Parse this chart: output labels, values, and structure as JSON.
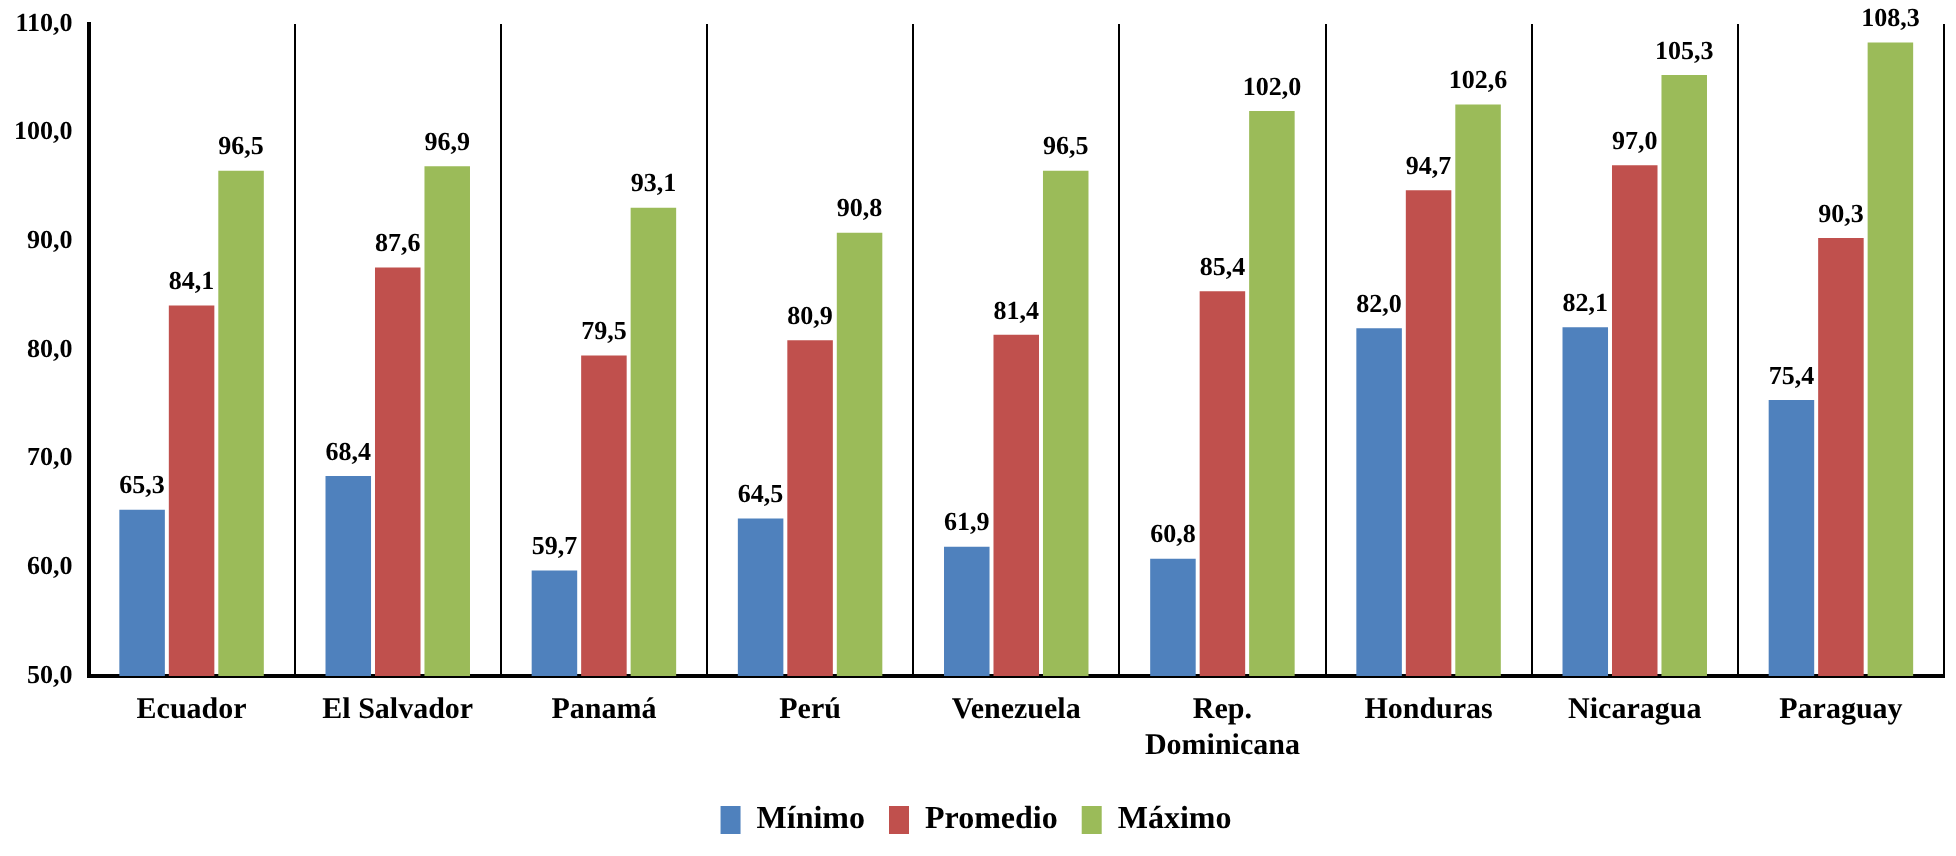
{
  "chart_data": {
    "type": "bar",
    "categories": [
      "Ecuador",
      "El Salvador",
      "Panamá",
      "Perú",
      "Venezuela",
      "Rep. Dominicana",
      "Honduras",
      "Nicaragua",
      "Paraguay"
    ],
    "series": [
      {
        "name": "Mínimo",
        "color": "#4f81bd",
        "values": [
          65.3,
          68.4,
          59.7,
          64.5,
          61.9,
          60.8,
          82.0,
          82.1,
          75.4
        ],
        "value_labels": [
          "65,3",
          "68,4",
          "59,7",
          "64,5",
          "61,9",
          "60,8",
          "82,0",
          "82,1",
          "75,4"
        ]
      },
      {
        "name": "Promedio",
        "color": "#c0504d",
        "values": [
          84.1,
          87.6,
          79.5,
          80.9,
          81.4,
          85.4,
          94.7,
          97.0,
          90.3
        ],
        "value_labels": [
          "84,1",
          "87,6",
          "79,5",
          "80,9",
          "81,4",
          "85,4",
          "94,7",
          "97,0",
          "90,3"
        ]
      },
      {
        "name": "Máximo",
        "color": "#9bbb59",
        "values": [
          96.5,
          96.9,
          93.1,
          90.8,
          96.5,
          102.0,
          102.6,
          105.3,
          108.3
        ],
        "value_labels": [
          "96,5",
          "96,9",
          "93,1",
          "90,8",
          "96,5",
          "102,0",
          "102,6",
          "105,3",
          "108,3"
        ]
      }
    ],
    "ylim": [
      50,
      110
    ],
    "yticks": [
      {
        "value": 50,
        "label": "50,0"
      },
      {
        "value": 60,
        "label": "60,0"
      },
      {
        "value": 70,
        "label": "70,0"
      },
      {
        "value": 80,
        "label": "80,0"
      },
      {
        "value": 90,
        "label": "90,0"
      },
      {
        "value": 100,
        "label": "100,0"
      },
      {
        "value": 110,
        "label": "110,0"
      }
    ],
    "grid": "x",
    "legend": "bottom"
  }
}
